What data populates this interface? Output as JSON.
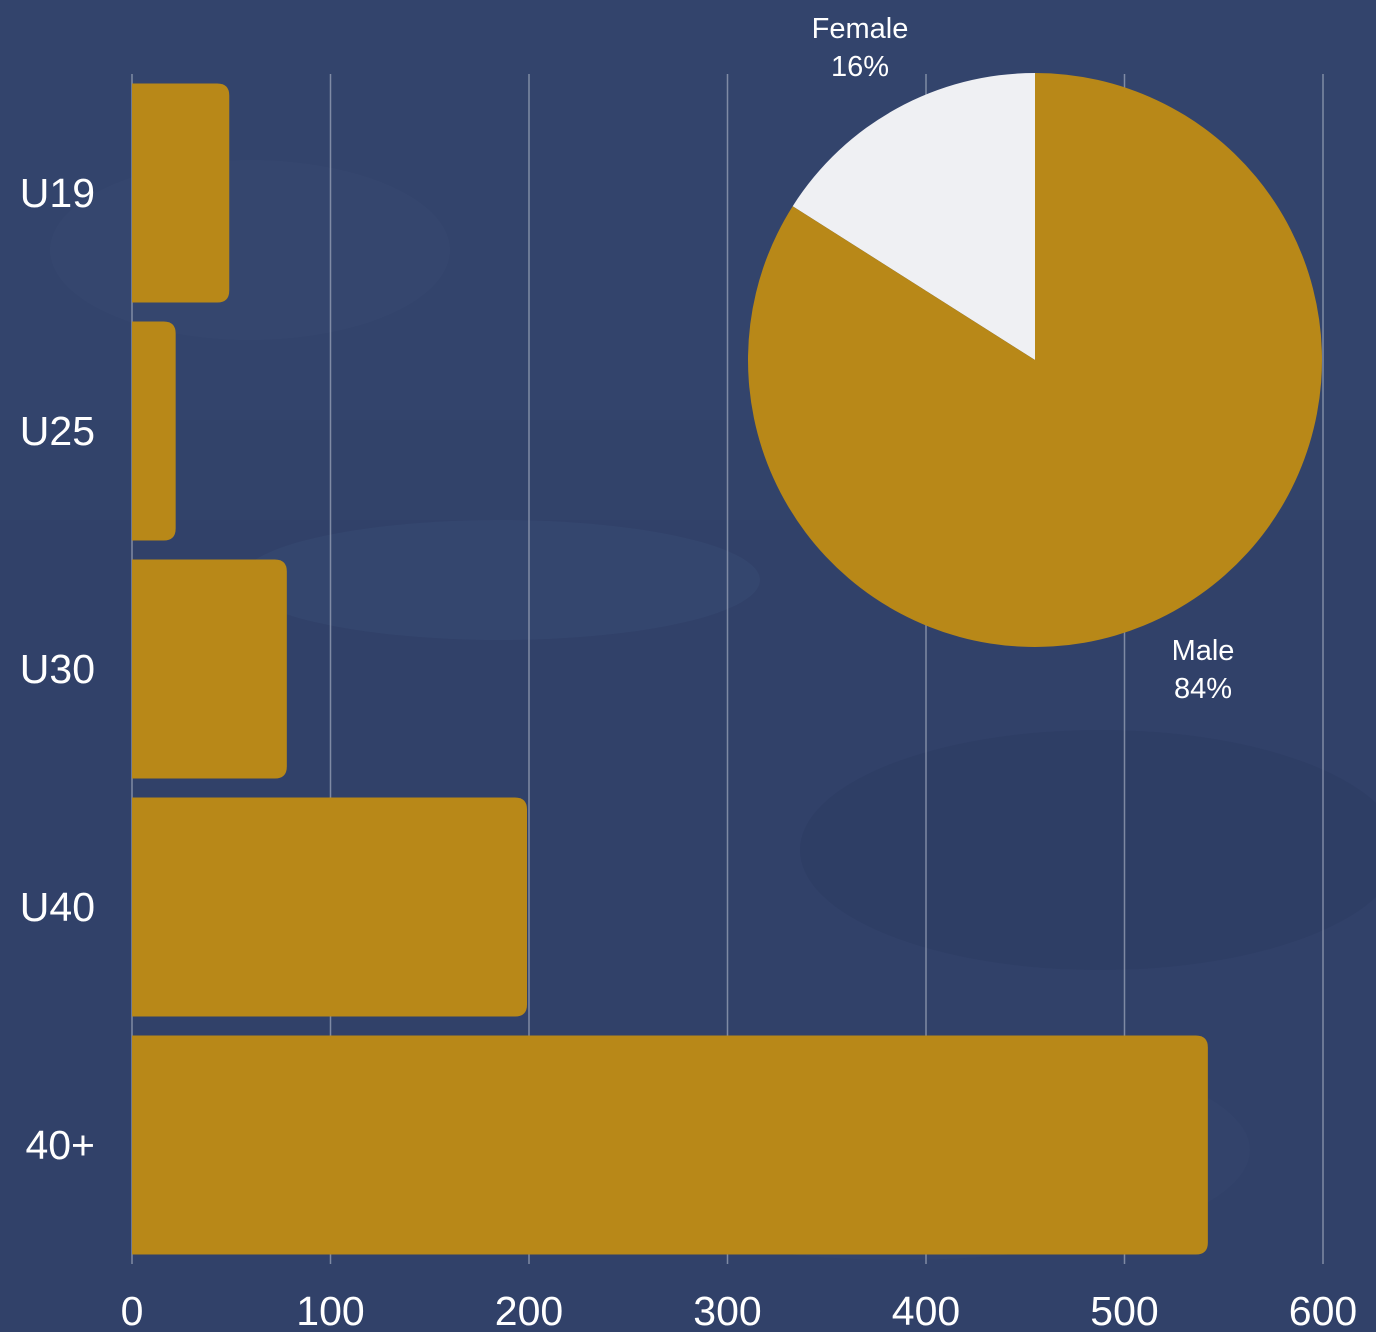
{
  "colors": {
    "background": "#32436a",
    "bar": "#b88818",
    "grid": "#9aa3b8",
    "female": "#eff0f3",
    "male": "#b88818",
    "text": "#ffffff"
  },
  "chart_data": [
    {
      "type": "bar",
      "orientation": "horizontal",
      "categories": [
        "U19",
        "U25",
        "U30",
        "U40",
        "40+"
      ],
      "values": [
        49,
        22,
        78,
        199,
        542
      ],
      "xlim": [
        0,
        600
      ],
      "xticks": [
        "0",
        "100",
        "200",
        "300",
        "400",
        "500",
        "600"
      ],
      "grid": "vertical",
      "title": "",
      "xlabel": "",
      "ylabel": ""
    },
    {
      "type": "pie",
      "slices": [
        {
          "label": "Female",
          "percent_label": "16%",
          "value": 16
        },
        {
          "label": "Male",
          "percent_label": "84%",
          "value": 84
        }
      ]
    }
  ]
}
